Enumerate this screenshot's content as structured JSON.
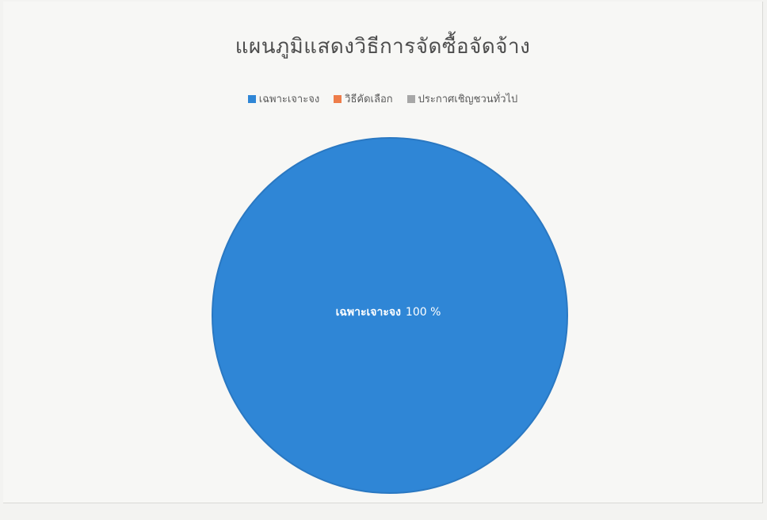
{
  "chart_data": {
    "type": "pie",
    "title": "แผนภูมิแสดงวิธีการจัดซื้อจัดจ้าง",
    "legend_position": "top",
    "series": [
      {
        "name": "เฉพาะเจาะจง",
        "value": 100,
        "color": "#2f86d6"
      },
      {
        "name": "วิธีคัดเลือก",
        "value": 0,
        "color": "#ee7d4a"
      },
      {
        "name": "ประกาศเชิญชวนทั่วไป",
        "value": 0,
        "color": "#a7a7a7"
      }
    ],
    "data_labels": [
      {
        "category": "เฉพาะเจาะจง",
        "text": "เฉพาะเจาะจง",
        "value_text": "100 %"
      }
    ]
  }
}
